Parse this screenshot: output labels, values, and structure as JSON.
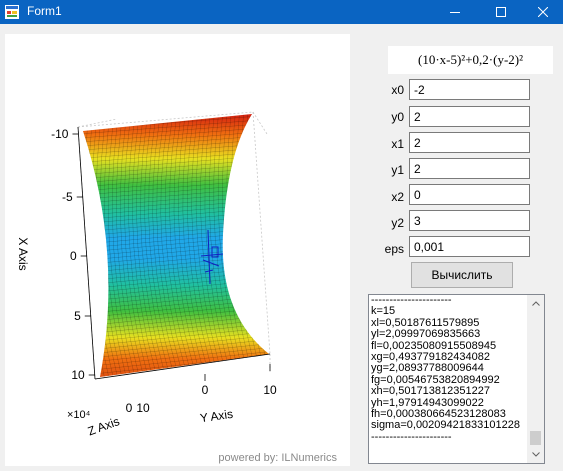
{
  "window": {
    "title": "Form1"
  },
  "plot": {
    "x_axis_label": "X Axis",
    "y_axis_label": "Y Axis",
    "z_axis_label": "Z Axis",
    "x_ticks": [
      "-10",
      "-5",
      "0",
      "5",
      "10"
    ],
    "y_ticks": [
      "0",
      "10"
    ],
    "z_ticks": [
      "0",
      "10"
    ],
    "z_scale_label": "×10⁴",
    "watermark": "powered by: ILNumerics"
  },
  "formula": "(10·x-5)²+0,2·(y-2)²",
  "fields": [
    {
      "label": "x0",
      "value": "-2"
    },
    {
      "label": "y0",
      "value": "2"
    },
    {
      "label": "x1",
      "value": "2"
    },
    {
      "label": "y1",
      "value": "2"
    },
    {
      "label": "x2",
      "value": "0"
    },
    {
      "label": "y2",
      "value": "3"
    },
    {
      "label": "eps",
      "value": "0,001"
    }
  ],
  "calculate_button": "Вычислить",
  "output_lines": [
    "----------------------",
    "k=15",
    "xl=0,50187611579895",
    "yl=2,09997069835663",
    "fl=0,00235080915508945",
    "xg=0,493779182434082",
    "yg=2,08937788009644",
    "fg=0,00546753820894992",
    "xh=0,501713812351227",
    "yh=1,97914943099022",
    "fh=0,000380664523128083",
    "sigma=0,00209421833101228",
    "----------------------"
  ],
  "colors": {
    "titlebar": "#0a64c2",
    "surface_top": "#d42010",
    "surface_mid": "#20a8e8",
    "surface_bottom": "#e05010"
  }
}
